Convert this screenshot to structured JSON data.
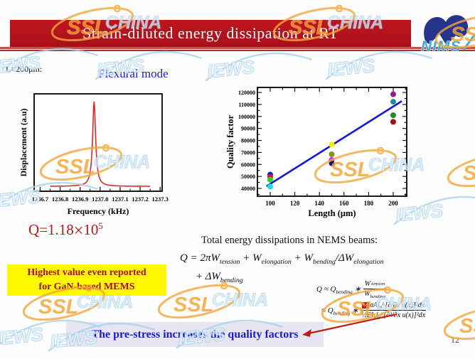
{
  "slide": {
    "title": "Strain-diluted energy dissipation at RT",
    "length_label": "L=200μm:",
    "flexural_label": "Flexural mode",
    "q_value": {
      "prefix": "Q=1.18",
      "times": "×",
      "base": "10",
      "exponent": "5"
    },
    "highlight_box": {
      "line1": "Highest value even reported",
      "line2": "for GaN-based MEMS"
    },
    "total_text": "Total energy dissipations in NEMS beams:",
    "conclusion": "The pre-stress increases the quality factors",
    "page_number": "12",
    "logo_text": "NIMS"
  },
  "equations": {
    "main_line1": "Q = 2πW_{tension} + W_{elongation} + W_{bending}/ΔW_{elongation}",
    "main_line2": "+ ΔW_{bending}",
    "approx1": {
      "lhs": "Q ≈ Q_{bending} ∗",
      "num": "W_{tension}",
      "den": "W_{bending}"
    },
    "approx2": {
      "lhs": "≈ Q_{bending} ∗",
      "boxed": "½",
      "num_rest": "σA∫₀ᴸ[∂/∂x u(x)]²dx",
      "den": "½EI_{Z}∫₀ᴸ[∂²/∂x u(x)]²dx"
    }
  },
  "watermarks": {
    "ssl": "SSL",
    "china": "CHINA",
    "iews": "IEWS"
  },
  "colors": {
    "title_bar": "#b5121a",
    "accent_red": "#b51a1a",
    "curve_red": "#e82620",
    "fit_blue": "#1717d8",
    "highlight_yellow": "#fef900",
    "conclusion_blue": "#1c1cc4",
    "arrow_red": "#bb2016"
  },
  "chart_data": [
    {
      "type": "line",
      "id": "resonance",
      "xlabel": "Frequency (kHz)",
      "ylabel": "Displacement (a.u)",
      "xlim": [
        1236.67,
        1237.31
      ],
      "xticks": [
        1236.7,
        1236.8,
        1236.9,
        1237.0,
        1237.1,
        1237.2,
        1237.3
      ],
      "peak_frequency": 1236.97,
      "gamma": 0.009,
      "baseline": 0.05,
      "peak_height": 0.92,
      "curve_range": [
        1236.75,
        1237.25
      ],
      "curve_color": "#e82620",
      "grid": false
    },
    {
      "type": "scatter",
      "id": "quality",
      "xlabel": "Length (μm)",
      "ylabel": "Quality factor",
      "xlim": [
        89.6,
        211
      ],
      "ylim": [
        33500,
        124200
      ],
      "xticks": [
        100,
        120,
        140,
        160,
        180,
        200
      ],
      "yticks": [
        40000,
        50000,
        60000,
        70000,
        80000,
        90000,
        100000,
        110000,
        120000
      ],
      "points": [
        {
          "x": 100,
          "y": 51500,
          "color": "#1a1ad2"
        },
        {
          "x": 100,
          "y": 49500,
          "color": "#cc2020"
        },
        {
          "x": 100,
          "y": 47200,
          "color": "#2fd32f"
        },
        {
          "x": 100,
          "y": 41500,
          "color": "#1ae2e2"
        },
        {
          "x": 150,
          "y": 76500,
          "color": "#f0f000"
        },
        {
          "x": 150,
          "y": 68500,
          "color": "#8f8f20"
        },
        {
          "x": 150,
          "y": 63800,
          "color": "#ee22ee"
        },
        {
          "x": 150,
          "y": 61000,
          "color": "#16166a"
        },
        {
          "x": 200,
          "y": 118500,
          "color": "#8c208c"
        },
        {
          "x": 200,
          "y": 112300,
          "color": "#1f9090"
        },
        {
          "x": 200,
          "y": 101000,
          "color": "#1d8f1d"
        },
        {
          "x": 200,
          "y": 95500,
          "color": "#9b1414"
        }
      ],
      "fit_line": {
        "x1": 97,
        "y1": 41800,
        "x2": 207,
        "y2": 112800,
        "color": "#1717d8"
      },
      "grid": false
    }
  ]
}
